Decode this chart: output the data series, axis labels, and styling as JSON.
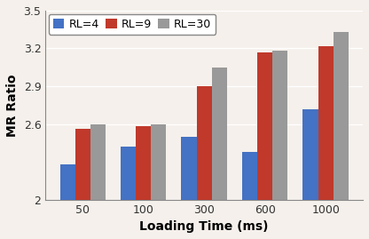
{
  "categories": [
    50,
    100,
    300,
    600,
    1000
  ],
  "series": {
    "RL=4": [
      2.28,
      2.42,
      2.5,
      2.38,
      2.72
    ],
    "RL=9": [
      2.56,
      2.58,
      2.9,
      3.17,
      3.22
    ],
    "RL=30": [
      2.6,
      2.6,
      3.05,
      3.18,
      3.33
    ]
  },
  "colors": {
    "RL=4": "#4472c4",
    "RL=9": "#c0392b",
    "RL=30": "#999999"
  },
  "xlabel": "Loading Time (ms)",
  "ylabel": "MR Ratio",
  "ylim": [
    2.0,
    3.5
  ],
  "yticks": [
    2.0,
    2.6,
    2.9,
    3.2,
    3.5
  ],
  "ytick_labels": [
    "2",
    "2.6",
    "2.9",
    "3.2",
    "3.5"
  ],
  "bar_width": 0.25,
  "legend_labels": [
    "RL=4",
    "RL=9",
    "RL=30"
  ],
  "axis_fontsize": 10,
  "tick_fontsize": 9,
  "legend_fontsize": 9,
  "bg_color": "#f5f0eb"
}
